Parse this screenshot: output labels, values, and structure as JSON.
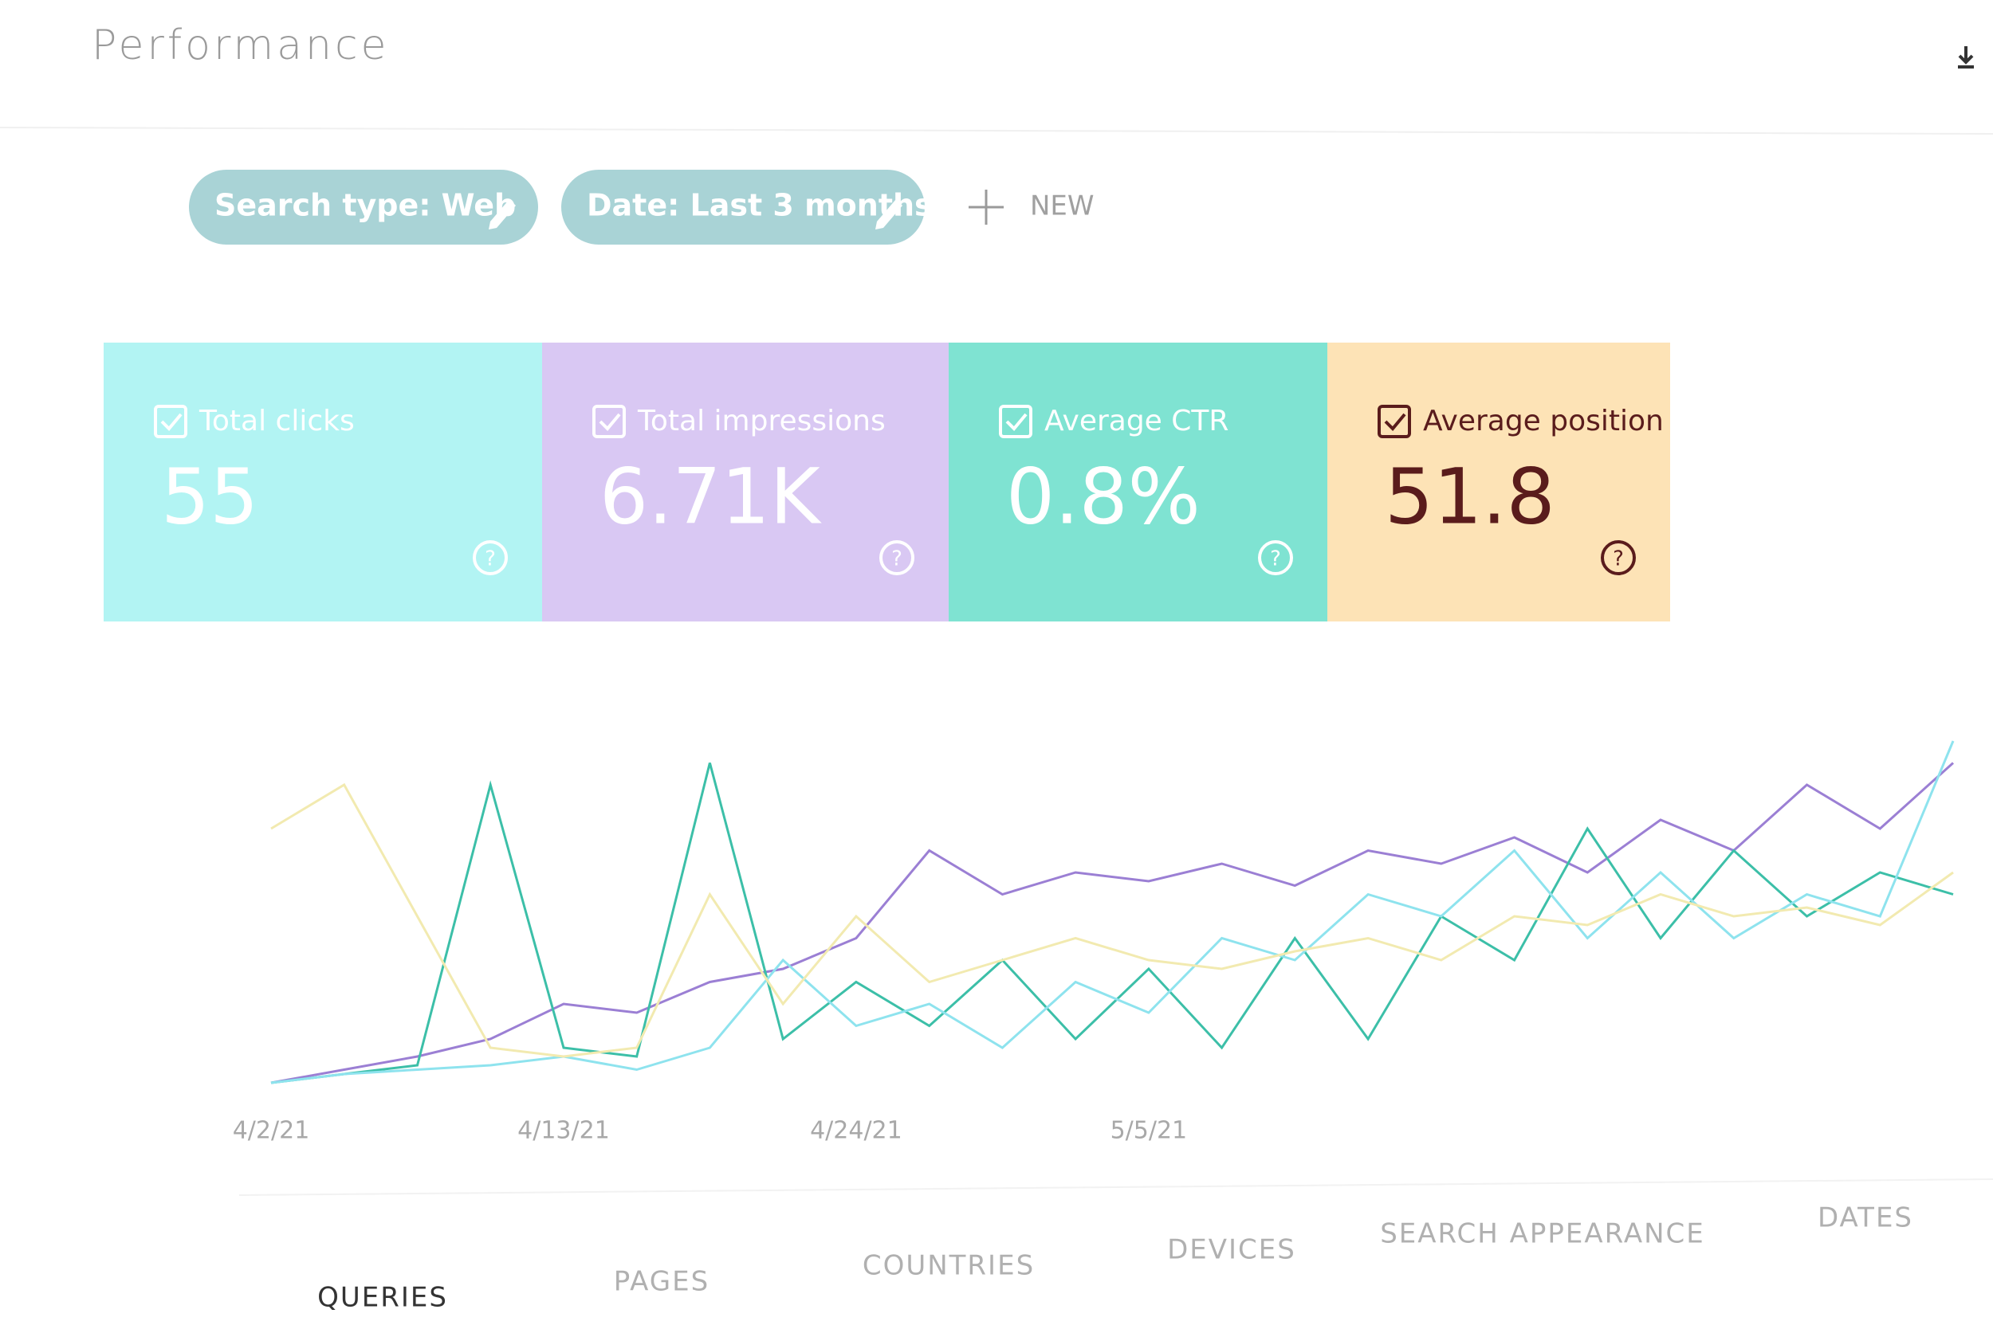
{
  "header": {
    "title": "Performance"
  },
  "filters": [
    "Search type: Web",
    "Date: Last 3 months"
  ],
  "new_button": "NEW",
  "cards": [
    {
      "label": "Total clicks",
      "value": "55",
      "color": "#b2f4f3",
      "text_color": "#ffffff"
    },
    {
      "label": "Total impressions",
      "value": "6.71K",
      "color": "#d9c8f3",
      "text_color": "#ffffff"
    },
    {
      "label": "Average CTR",
      "value": "0.8%",
      "color": "#7fe3d2",
      "text_color": "#ffffff"
    },
    {
      "label": "Average position",
      "value": "51.8",
      "color": "#fde3b6",
      "text_color": "#5a1c1c"
    }
  ],
  "chart_data": {
    "type": "line",
    "categories": [
      "4/2/21",
      null,
      null,
      null,
      "4/13/21",
      null,
      null,
      null,
      "4/24/21",
      null,
      null,
      null,
      "5/5/21",
      null,
      null,
      null,
      null,
      null,
      null,
      null,
      null,
      null,
      null,
      null
    ],
    "ylim": [
      0,
      100
    ],
    "series": [
      {
        "color": "#9b7fd4",
        "values": [
          2,
          5,
          8,
          12,
          20,
          18,
          25,
          28,
          35,
          55,
          45,
          50,
          48,
          52,
          47,
          55,
          52,
          58,
          50,
          62,
          55,
          70,
          60,
          75
        ]
      },
      {
        "color": "#3cbfa8",
        "values": [
          2,
          4,
          6,
          70,
          10,
          8,
          75,
          12,
          25,
          15,
          30,
          12,
          28,
          10,
          35,
          12,
          40,
          30,
          60,
          35,
          55,
          40,
          50,
          45
        ]
      },
      {
        "color": "#8ee3ee",
        "values": [
          2,
          4,
          5,
          6,
          8,
          5,
          10,
          30,
          15,
          20,
          10,
          25,
          18,
          35,
          30,
          45,
          40,
          55,
          35,
          50,
          35,
          45,
          40,
          80
        ]
      },
      {
        "color": "#f2eab0",
        "values": [
          60,
          70,
          40,
          10,
          8,
          10,
          45,
          20,
          40,
          25,
          30,
          35,
          30,
          28,
          32,
          35,
          30,
          40,
          38,
          45,
          40,
          42,
          38,
          50
        ]
      }
    ]
  },
  "tabs": [
    "QUERIES",
    "PAGES",
    "COUNTRIES",
    "DEVICES",
    "SEARCH APPEARANCE",
    "DATES"
  ]
}
